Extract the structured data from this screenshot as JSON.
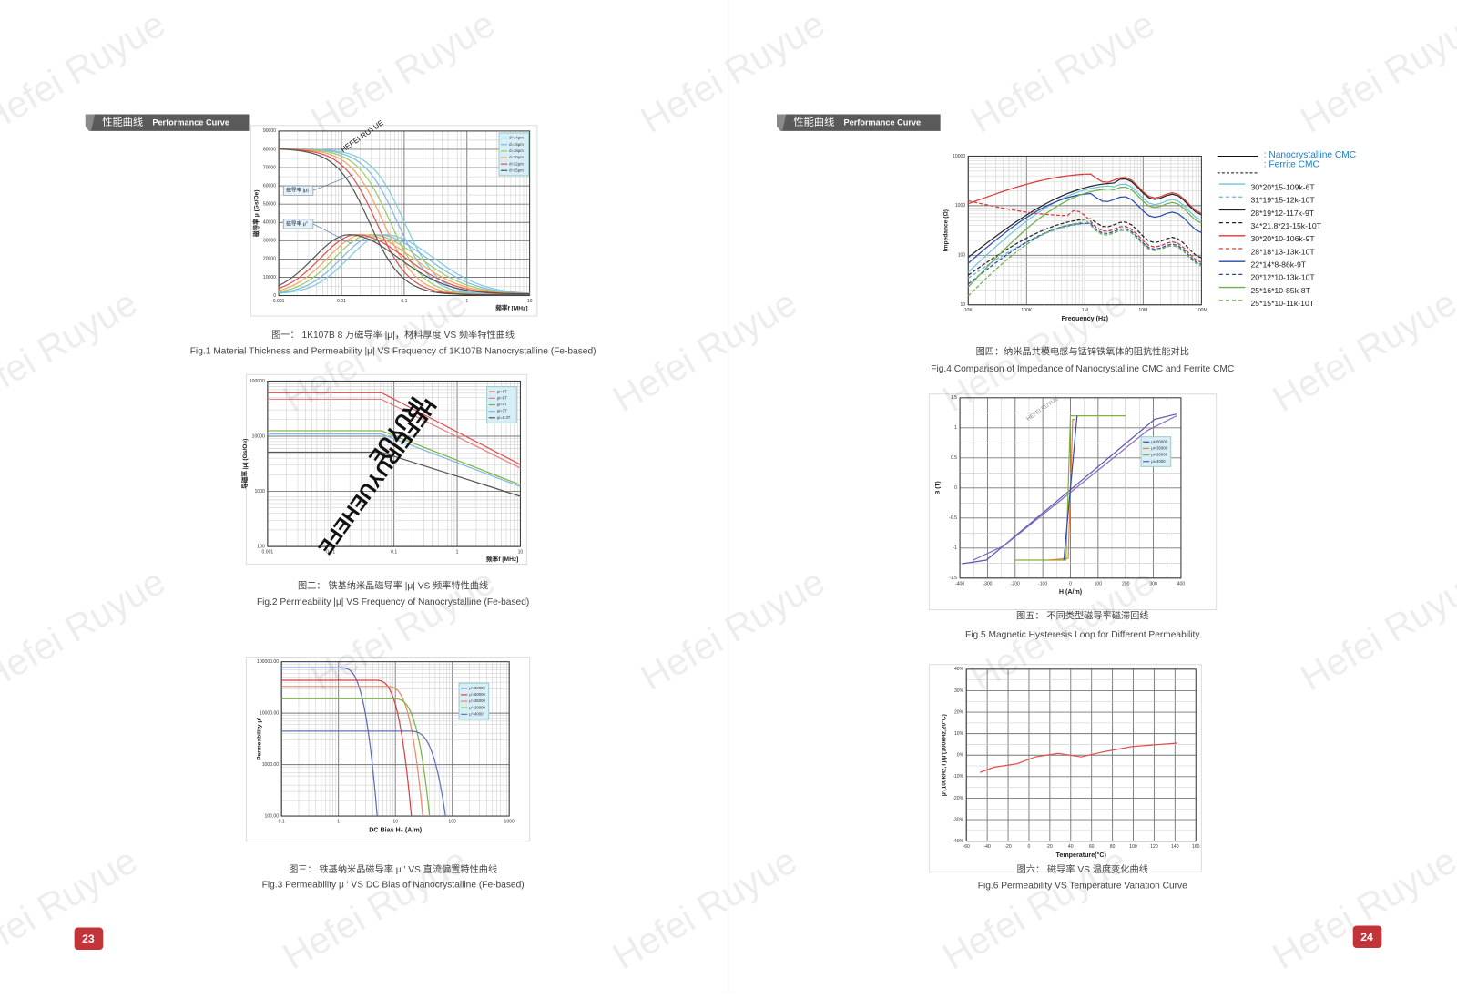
{
  "watermark": "Hefei Ruyue",
  "pages": [
    {
      "section_tag": {
        "zh": "性能曲线",
        "en": "Performance Curve"
      },
      "page_number": "23",
      "figures": [
        {
          "y_label": "磁导率 μ (Gs/Oe)",
          "x_label": "频率f [MHz]",
          "x_tick_labels": [
            "0.001",
            "0.01",
            "0.1",
            "1",
            "10"
          ],
          "y_tick_labels": [
            "0",
            "10000",
            "20000",
            "30000",
            "40000",
            "50000",
            "60000",
            "70000",
            "80000",
            "90000"
          ],
          "legend": [
            "d=14μm",
            "d=16μm",
            "d=18μm",
            "d=20μm",
            "d=22μm",
            "d=25μm"
          ],
          "annotations": [
            "磁导率 |μ|",
            "磁导率 μ''",
            "HEFEI RUYUE"
          ],
          "caption_zh": "图一：   1K107B 8 万磁导率 |μ|，材料厚度 VS 频率特性曲线",
          "caption_en": "Fig.1 Material Thickness and Permeability |μ| VS Frequency of 1K107B Nanocrystalline (Fe-based)"
        },
        {
          "y_label": "导磁率 |μ| (Gs/Oe)",
          "x_label": "频率f [MHz]",
          "x_tick_labels": [
            "0.001",
            "0.01",
            "0.1",
            "1",
            "10"
          ],
          "y_tick_labels": [
            "100",
            "1000",
            "10000",
            "100000"
          ],
          "legend": [
            "μi=8T",
            "μi=6T",
            "μi=4T",
            "μi=3T",
            "μi=0.3T"
          ],
          "annotations": [
            "HEFEIRUYUEHEFE",
            "IRUYUE"
          ],
          "caption_zh": "图二：   铁基纳米晶磁导率 |μ| VS 频率特性曲线",
          "caption_en": "Fig.2 Permeability |μ| VS Frequency of Nanocrystalline (Fe-based)"
        },
        {
          "y_label": "Permeability μ'",
          "x_label": "DC Bias H₀ (A/m)",
          "x_tick_labels": [
            "0.1",
            "1",
            "10",
            "100",
            "1000"
          ],
          "y_tick_labels": [
            "100.00",
            "1000.00",
            "10000.00",
            "100000.00"
          ],
          "legend": [
            "μ'=80000",
            "μ'=60000",
            "μ'=35000",
            "μ'=20000",
            "μ'=4000"
          ],
          "annotations": [],
          "caption_zh": "图三：   铁基纳米晶磁导率 μ ' VS 直流偏置特性曲线",
          "caption_en": "Fig.3 Permeability μ ' VS DC Bias of Nanocrystalline (Fe-based)"
        }
      ]
    },
    {
      "section_tag": {
        "zh": "性能曲线",
        "en": "Performance Curve"
      },
      "page_number": "24",
      "figures": [
        {
          "y_label": "Impedance (Ω)",
          "x_label": "Frequency (Hz)",
          "x_tick_labels": [
            "10K",
            "100K",
            "1M",
            "10M",
            "100M"
          ],
          "y_tick_labels": [
            "10",
            "100",
            "1000",
            "10000"
          ],
          "legend_header": [
            ": Nanocrystalline CMC",
            ": Ferrite CMC"
          ],
          "legend": [
            "30*20*15-109k-6T",
            "31*19*15-12k-10T",
            "28*19*12-117k-9T",
            "34*21.8*21-15k-10T",
            "30*20*10-106k-9T",
            "28*18*13-13k-10T",
            "22*14*8-86k-9T",
            "20*12*10-13k-10T",
            "25*16*10-85k-8T",
            "25*15*10-11k-10T"
          ],
          "annotations": [],
          "caption_zh": "图四：纳米晶共模电感与锰锌铁氧体的阻抗性能对比",
          "caption_en": "Fig.4 Comparison of Impedance of Nanocrystalline CMC and Ferrite CMC"
        },
        {
          "y_label": "B (T)",
          "x_label": "H (A/m)",
          "x_tick_labels": [
            "-400",
            "-300",
            "-200",
            "-100",
            "0",
            "100",
            "200",
            "300",
            "400"
          ],
          "y_tick_labels": [
            "-1.5",
            "-1",
            "-0.5",
            "0",
            "0.5",
            "1",
            "1.5"
          ],
          "legend": [
            "μi=80000",
            "μi=35000",
            "μi=20000",
            "μi=4000"
          ],
          "annotations": [
            "HEFEI RUYUE"
          ],
          "caption_zh": "图五：   不同类型磁导率磁滞回线",
          "caption_en": "Fig.5 Magnetic Hysteresis Loop for Different Permeability"
        },
        {
          "y_label": "μ'(100kHz,T)/μ'(100kHz,20°C)",
          "x_label": "Temperature(°C)",
          "x_tick_labels": [
            "-60",
            "-40",
            "-20",
            "0",
            "20",
            "40",
            "60",
            "80",
            "100",
            "120",
            "140",
            "160"
          ],
          "y_tick_labels": [
            "-40%",
            "-30%",
            "-20%",
            "-10%",
            "0%",
            "10%",
            "20%",
            "30%",
            "40%"
          ],
          "legend": [],
          "annotations": [],
          "caption_zh": "图六：   磁导率 VS 温度变化曲线",
          "caption_en": "Fig.6 Permeability VS Temperature Variation Curve"
        }
      ]
    }
  ]
}
